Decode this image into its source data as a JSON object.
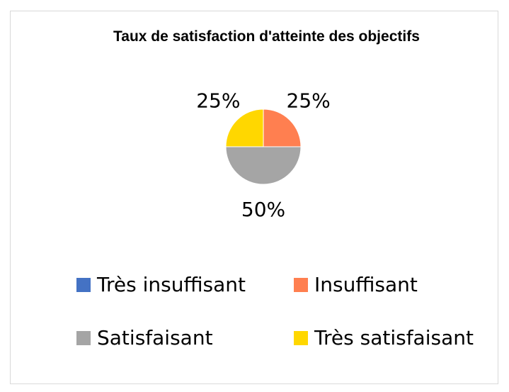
{
  "chart_data": {
    "type": "pie",
    "title": "Taux de satisfaction d'atteinte des objectifs",
    "categories": [
      "Très insuffisant",
      "Insuffisant",
      "Satisfaisant",
      "Très satisfaisant"
    ],
    "values": [
      0,
      25,
      50,
      25
    ],
    "data_labels": [
      "",
      "25%",
      "50%",
      "25%"
    ],
    "colors": [
      "#4472c4",
      "#ff7f50",
      "#a5a5a5",
      "#ffd700"
    ],
    "start_angle_deg": 0,
    "direction": "clockwise",
    "legend_position": "bottom"
  }
}
